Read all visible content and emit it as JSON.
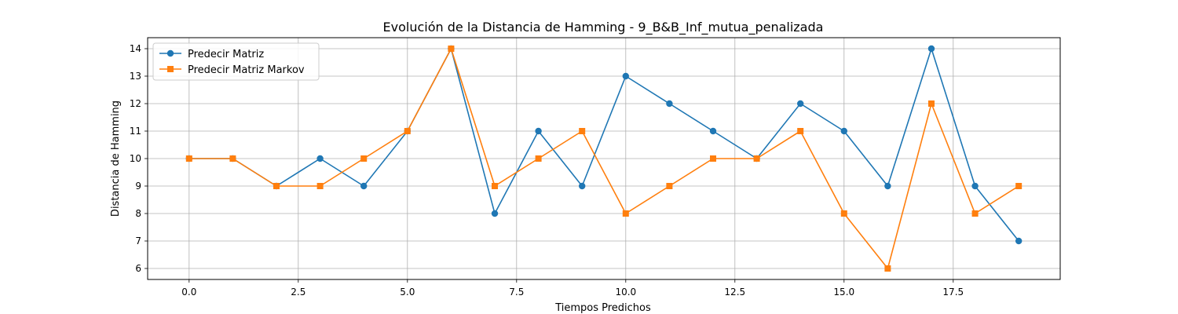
{
  "chart_data": {
    "type": "line",
    "title": "Evolución de la Distancia de Hamming - 9_B&B_Inf_mutua_penalizada",
    "xlabel": "Tiempos Predichos",
    "ylabel": "Distancia de Hamming",
    "x": [
      0,
      1,
      2,
      3,
      4,
      5,
      6,
      7,
      8,
      9,
      10,
      11,
      12,
      13,
      14,
      15,
      16,
      17,
      18,
      19
    ],
    "xlim": [
      -0.95,
      19.95
    ],
    "ylim": [
      5.6,
      14.4
    ],
    "xticks": [
      0.0,
      2.5,
      5.0,
      7.5,
      10.0,
      12.5,
      15.0,
      17.5
    ],
    "xtick_labels": [
      "0.0",
      "2.5",
      "5.0",
      "7.5",
      "10.0",
      "12.5",
      "15.0",
      "17.5"
    ],
    "yticks": [
      6,
      7,
      8,
      9,
      10,
      11,
      12,
      13,
      14
    ],
    "ytick_labels": [
      "6",
      "7",
      "8",
      "9",
      "10",
      "11",
      "12",
      "13",
      "14"
    ],
    "grid": true,
    "legend_position": "upper-left",
    "series": [
      {
        "name": "Predecir Matriz",
        "color": "#1f77b4",
        "marker": "circle",
        "values": [
          10,
          10,
          9,
          10,
          9,
          11,
          14,
          8,
          11,
          9,
          13,
          12,
          11,
          10,
          12,
          11,
          9,
          14,
          9,
          7
        ]
      },
      {
        "name": "Predecir Matriz Markov",
        "color": "#ff7f0e",
        "marker": "square",
        "values": [
          10,
          10,
          9,
          9,
          10,
          11,
          14,
          9,
          10,
          11,
          8,
          9,
          10,
          10,
          11,
          8,
          6,
          12,
          8,
          9
        ]
      }
    ]
  }
}
